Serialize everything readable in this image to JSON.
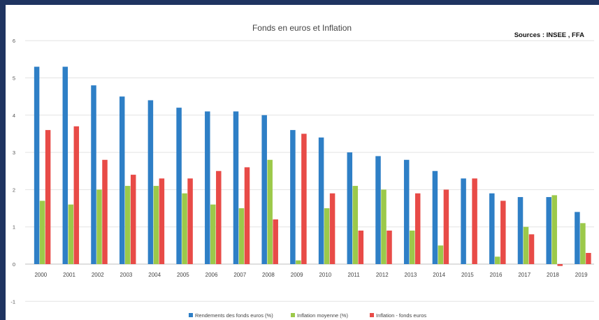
{
  "chart_data": {
    "type": "bar",
    "title": "Fonds en euros et Inflation",
    "source_note": "Sources : INSEE , FFA",
    "categories": [
      "2000",
      "2001",
      "2002",
      "2003",
      "2004",
      "2005",
      "2006",
      "2007",
      "2008",
      "2009",
      "2010",
      "2011",
      "2012",
      "2013",
      "2014",
      "2015",
      "2016",
      "2017",
      "2018",
      "2019"
    ],
    "ylim": [
      -1,
      6
    ],
    "yticks": [
      -1,
      0,
      1,
      2,
      3,
      4,
      5,
      6
    ],
    "grid": true,
    "legend_position": "bottom",
    "series": [
      {
        "name": "Rendements des fonds euros (%)",
        "color": "#2e7fc6",
        "values": [
          5.3,
          5.3,
          4.8,
          4.5,
          4.4,
          4.2,
          4.1,
          4.1,
          4.0,
          3.6,
          3.4,
          3.0,
          2.9,
          2.8,
          2.5,
          2.3,
          1.9,
          1.8,
          1.8,
          1.4
        ]
      },
      {
        "name": "Inflation  moyenne (%)",
        "color": "#9cc94a",
        "values": [
          1.7,
          1.6,
          2.0,
          2.1,
          2.1,
          1.9,
          1.6,
          1.5,
          2.8,
          0.1,
          1.5,
          2.1,
          2.0,
          0.9,
          0.5,
          0.0,
          0.2,
          1.0,
          1.85,
          1.1
        ]
      },
      {
        "name": "Inflation - fonds euros",
        "color": "#e84b47",
        "values": [
          3.6,
          3.7,
          2.8,
          2.4,
          2.3,
          2.3,
          2.5,
          2.6,
          1.2,
          3.5,
          1.9,
          0.9,
          0.9,
          1.9,
          2.0,
          2.3,
          1.7,
          0.8,
          -0.05,
          0.3
        ]
      }
    ]
  }
}
